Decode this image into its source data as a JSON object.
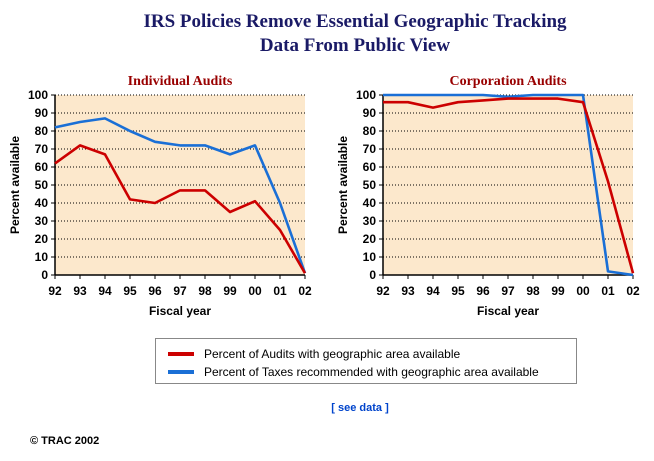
{
  "header": {
    "title_line1": "IRS Policies Remove Essential Geographic Tracking",
    "title_line2": "Data From Public View"
  },
  "colors": {
    "audits": "#cc0000",
    "taxes": "#1a6fd6",
    "plot_bg": "#fce8cc",
    "title": "#1a1a66",
    "subtitle": "#990000",
    "link": "#0044cc"
  },
  "chart_data": [
    {
      "type": "line",
      "title": "Individual Audits",
      "xlabel": "Fiscal year",
      "ylabel": "Percent available",
      "ylim": [
        0,
        100
      ],
      "yticks": [
        0,
        10,
        20,
        30,
        40,
        50,
        60,
        70,
        80,
        90,
        100
      ],
      "categories": [
        "92",
        "93",
        "94",
        "95",
        "96",
        "97",
        "98",
        "99",
        "00",
        "01",
        "02"
      ],
      "grid": true,
      "series": [
        {
          "name": "Percent of Audits with geographic area available",
          "color": "#cc0000",
          "values": [
            62,
            72,
            67,
            42,
            40,
            47,
            47,
            35,
            41,
            25,
            1
          ]
        },
        {
          "name": "Percent of Taxes recommended with geographic area available",
          "color": "#1a6fd6",
          "values": [
            82,
            85,
            87,
            80,
            74,
            72,
            72,
            67,
            72,
            40,
            1
          ]
        }
      ]
    },
    {
      "type": "line",
      "title": "Corporation Audits",
      "xlabel": "Fiscal year",
      "ylabel": "Percent available",
      "ylim": [
        0,
        100
      ],
      "yticks": [
        0,
        10,
        20,
        30,
        40,
        50,
        60,
        70,
        80,
        90,
        100
      ],
      "categories": [
        "92",
        "93",
        "94",
        "95",
        "96",
        "97",
        "98",
        "99",
        "00",
        "01",
        "02"
      ],
      "grid": true,
      "series": [
        {
          "name": "Percent of Audits with geographic area available",
          "color": "#cc0000",
          "values": [
            96,
            96,
            93,
            96,
            97,
            98,
            98,
            98,
            96,
            52,
            1
          ]
        },
        {
          "name": "Percent of Taxes recommended with geographic area available",
          "color": "#1a6fd6",
          "values": [
            100,
            100,
            100,
            100,
            100,
            99,
            100,
            100,
            100,
            2,
            0
          ]
        }
      ]
    }
  ],
  "legend": {
    "items": [
      {
        "label": "Percent of Audits with geographic area available",
        "color": "#cc0000"
      },
      {
        "label": "Percent of Taxes recommended with geographic area available",
        "color": "#1a6fd6"
      }
    ]
  },
  "footer": {
    "see_data": "[ see data ]",
    "copyright": "© TRAC 2002"
  }
}
